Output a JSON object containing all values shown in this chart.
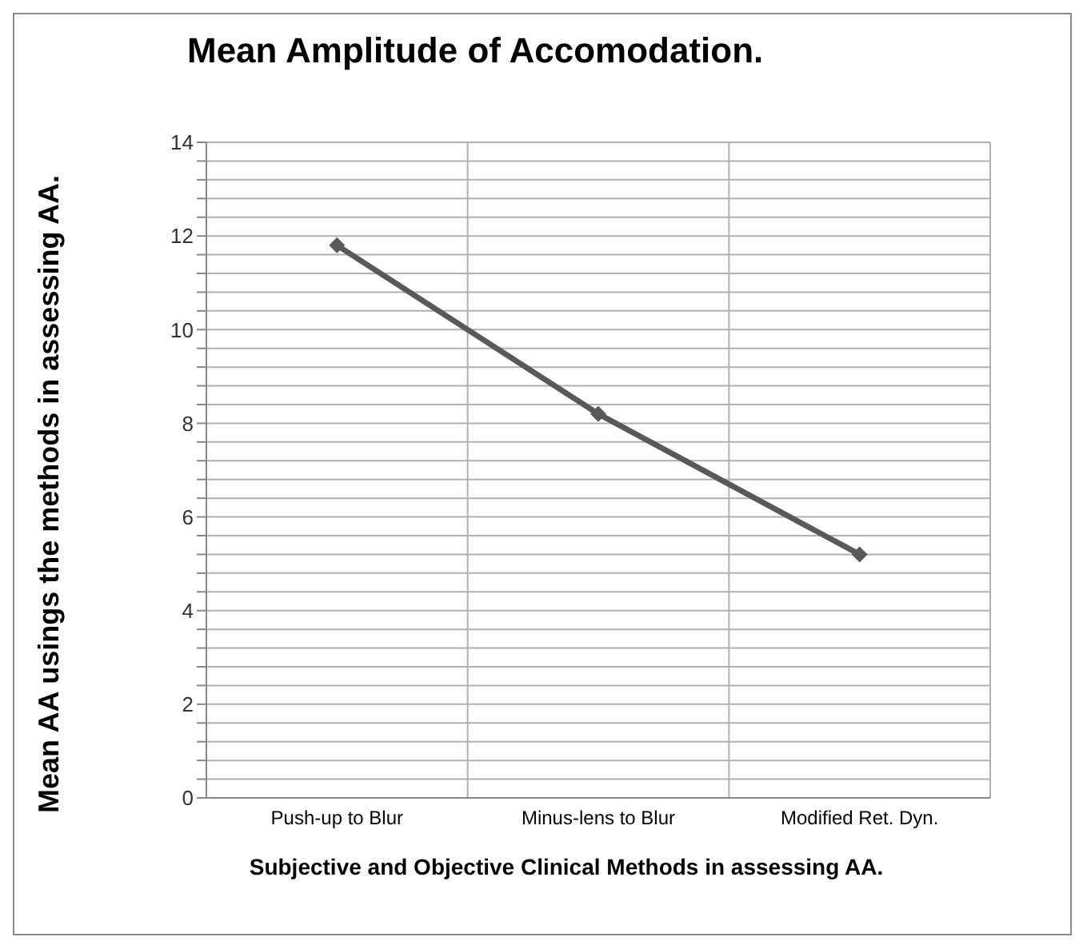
{
  "chart_data": {
    "type": "line",
    "title": "Mean Amplitude of Accomodation.",
    "xlabel": "Subjective and Objective Clinical Methods in assessing AA.",
    "ylabel": "Mean AA usings the methods in assessing AA.",
    "categories": [
      "Push-up to Blur",
      "Minus-lens to Blur",
      "Modified Ret. Dyn."
    ],
    "series": [
      {
        "color": "#595959",
        "values": [
          11.8,
          8.2,
          5.2
        ]
      }
    ],
    "ylim": [
      0,
      14
    ],
    "yticks": [
      0,
      {
        "value": 0.4,
        "label": null
      },
      {
        "value": 0.8,
        "label": null
      },
      {
        "value": 1.2,
        "label": null
      },
      {
        "value": 1.6,
        "label": null
      },
      2,
      {
        "value": 2.4,
        "label": null
      },
      {
        "value": 2.8,
        "label": null
      },
      {
        "value": 3.2,
        "label": null
      },
      {
        "value": 3.6,
        "label": null
      },
      4,
      {
        "value": 4.4,
        "label": null
      },
      {
        "value": 4.8,
        "label": null
      },
      {
        "value": 5.2,
        "label": null
      },
      {
        "value": 5.6,
        "label": null
      },
      6,
      {
        "value": 6.4,
        "label": null
      },
      {
        "value": 6.8,
        "label": null
      },
      {
        "value": 7.2,
        "label": null
      },
      {
        "value": 7.6,
        "label": null
      },
      8,
      {
        "value": 8.4,
        "label": null
      },
      {
        "value": 8.8,
        "label": null
      },
      {
        "value": 9.2,
        "label": null
      },
      {
        "value": 9.6,
        "label": null
      },
      10,
      {
        "value": 10.4,
        "label": null
      },
      {
        "value": 10.8,
        "label": null
      },
      {
        "value": 11.2,
        "label": null
      },
      {
        "value": 11.6,
        "label": null
      },
      12,
      {
        "value": 12.4,
        "label": null
      },
      {
        "value": 12.8,
        "label": null
      },
      {
        "value": 13.2,
        "label": null
      },
      {
        "value": 13.6,
        "label": null
      },
      14
    ],
    "grid": true,
    "marker": "diamond",
    "line_style": "solid",
    "legend": false
  }
}
